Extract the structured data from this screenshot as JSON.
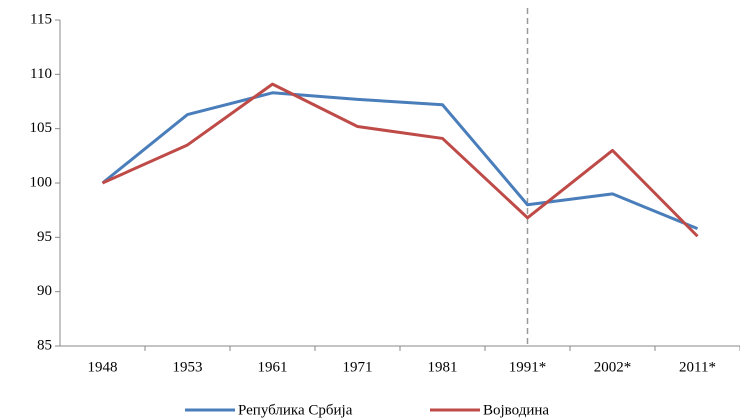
{
  "chart_data": {
    "type": "line",
    "categories": [
      "1948",
      "1953",
      "1961",
      "1971",
      "1981",
      "1991*",
      "2002*",
      "2011*"
    ],
    "series": [
      {
        "name": "Република Србија",
        "color": "#4a7ebb",
        "values": [
          100,
          106.3,
          108.3,
          107.7,
          107.2,
          98.0,
          99.0,
          95.8
        ]
      },
      {
        "name": "Војводина",
        "color": "#be4b48",
        "values": [
          100,
          103.5,
          109.1,
          105.2,
          104.1,
          96.8,
          103.0,
          95.1
        ]
      }
    ],
    "ylim": [
      85,
      115
    ],
    "yticks": [
      85,
      90,
      95,
      100,
      105,
      110,
      115
    ],
    "grid": false,
    "legend": "bottom",
    "reference_line_at": "1991*"
  }
}
